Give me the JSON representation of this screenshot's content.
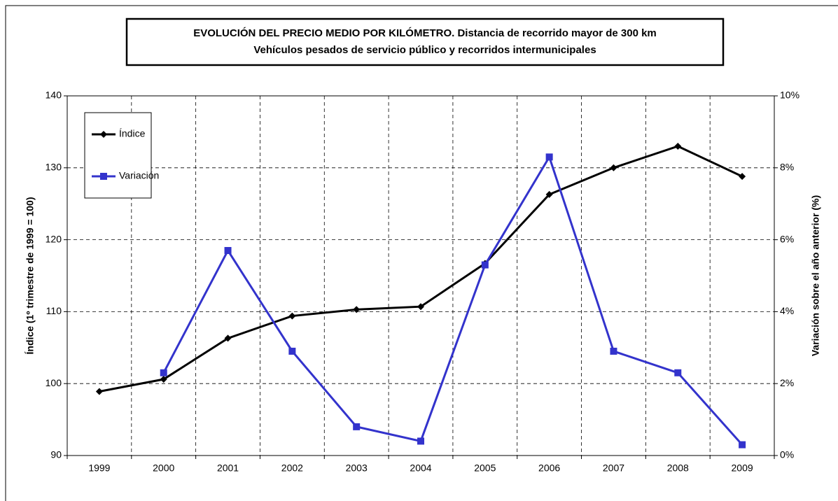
{
  "chart_data": {
    "type": "line",
    "title": "EVOLUCIÓN DEL PRECIO MEDIO POR KILÓMETRO. Distancia de recorrido mayor de 300 km",
    "subtitle": "Vehículos pesados de servicio público y recorridos intermunicipales",
    "y_label": "Índice (1º trimestre de 1999 = 100)",
    "y2_label": "Variación sobre el año anterior (%)",
    "categories": [
      "1999",
      "2000",
      "2001",
      "2002",
      "2003",
      "2004",
      "2005",
      "2006",
      "2007",
      "2008",
      "2009"
    ],
    "series": [
      {
        "name": "Índice",
        "color": "#000000",
        "marker": "diamond",
        "values": [
          98.9,
          100.6,
          106.3,
          109.4,
          110.3,
          110.7,
          116.7,
          126.3,
          130.0,
          133.0,
          128.8
        ]
      },
      {
        "name": "Variación",
        "color": "#3333cc",
        "marker": "square",
        "axis": "y2",
        "values": [
          null,
          2.3,
          5.7,
          2.9,
          0.8,
          0.4,
          5.3,
          8.3,
          2.9,
          2.3,
          0.3
        ]
      }
    ],
    "ylim": [
      90,
      140
    ],
    "yticks": [
      90,
      100,
      110,
      120,
      130,
      140
    ],
    "y2lim": [
      0,
      10
    ],
    "y2ticks": [
      {
        "value": 0,
        "label": "0%"
      },
      {
        "value": 2,
        "label": "2%"
      },
      {
        "value": 4,
        "label": "4%"
      },
      {
        "value": 6,
        "label": "6%"
      },
      {
        "value": 8,
        "label": "8%"
      },
      {
        "value": 10,
        "label": "10%"
      }
    ],
    "grid": true,
    "legend": "upper left"
  }
}
